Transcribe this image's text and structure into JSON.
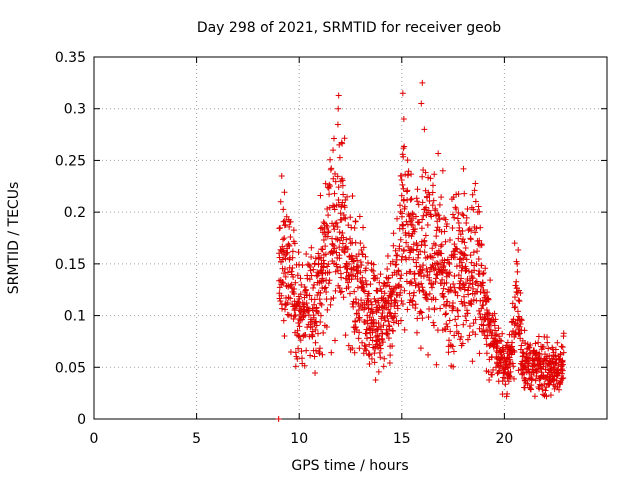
{
  "chart_data": {
    "type": "scatter",
    "title": "Day 298 of 2021, SRMTID for receiver geob",
    "xlabel": "GPS time / hours",
    "ylabel": "SRMTID / TECUs",
    "xlim": [
      0,
      25
    ],
    "ylim": [
      0,
      0.35
    ],
    "x_ticks": [
      0,
      5,
      10,
      15,
      20
    ],
    "y_ticks": [
      0,
      0.05,
      0.1,
      0.15,
      0.2,
      0.25,
      0.3,
      0.35
    ],
    "x_tick_labels": [
      "0",
      "5",
      "10",
      "15",
      "20"
    ],
    "y_tick_labels": [
      "0",
      "0.05",
      "0.1",
      "0.15",
      "0.2",
      "0.25",
      "0.3",
      "0.35"
    ],
    "grid": true,
    "marker": "+",
    "color": "#e00000",
    "series": [
      {
        "name": "SRMTID",
        "envelope_x": [
          9.0,
          9.1,
          9.3,
          9.6,
          9.9,
          10.2,
          10.5,
          10.8,
          11.0,
          11.3,
          11.6,
          11.9,
          12.2,
          12.5,
          12.8,
          13.1,
          13.4,
          13.7,
          14.0,
          14.3,
          14.6,
          14.9,
          15.1,
          15.3,
          15.6,
          15.9,
          16.2,
          16.5,
          16.8,
          17.1,
          17.4,
          17.7,
          18.0,
          18.3,
          18.6,
          18.9,
          19.2,
          19.5,
          19.8,
          20.1,
          20.4,
          20.6,
          20.9,
          21.2,
          21.5,
          21.8,
          22.1,
          22.4,
          22.7,
          22.9
        ],
        "envelope_y": [
          0.13,
          0.14,
          0.15,
          0.13,
          0.11,
          0.1,
          0.1,
          0.12,
          0.13,
          0.16,
          0.18,
          0.2,
          0.17,
          0.14,
          0.13,
          0.12,
          0.1,
          0.1,
          0.09,
          0.1,
          0.11,
          0.14,
          0.2,
          0.18,
          0.16,
          0.15,
          0.17,
          0.15,
          0.16,
          0.14,
          0.13,
          0.15,
          0.15,
          0.14,
          0.16,
          0.12,
          0.09,
          0.07,
          0.06,
          0.05,
          0.07,
          0.12,
          0.06,
          0.05,
          0.05,
          0.05,
          0.05,
          0.045,
          0.05,
          0.055
        ],
        "peaks": [
          {
            "x": 9.15,
            "y": 0.235
          },
          {
            "x": 9.1,
            "y": 0.21
          },
          {
            "x": 11.65,
            "y": 0.26
          },
          {
            "x": 11.95,
            "y": 0.265
          },
          {
            "x": 15.05,
            "y": 0.315
          },
          {
            "x": 15.1,
            "y": 0.29
          },
          {
            "x": 16.0,
            "y": 0.325
          },
          {
            "x": 15.95,
            "y": 0.305
          },
          {
            "x": 16.1,
            "y": 0.28
          },
          {
            "x": 17.0,
            "y": 0.24
          },
          {
            "x": 20.5,
            "y": 0.17
          },
          {
            "x": 9.0,
            "y": 0.0
          }
        ]
      }
    ]
  }
}
